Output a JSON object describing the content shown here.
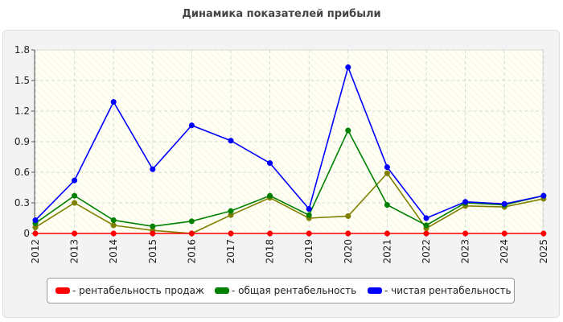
{
  "chart_data": {
    "type": "line",
    "title": "Динамика показателей прибыли",
    "categories": [
      "2012",
      "2013",
      "2014",
      "2015",
      "2016",
      "2017",
      "2018",
      "2019",
      "2020",
      "2021",
      "2022",
      "2023",
      "2024",
      "2025"
    ],
    "ylim": [
      0,
      1.8
    ],
    "yticks": [
      "0",
      "0.3",
      "0.6",
      "0.9",
      "1.2",
      "1.5",
      "1.8"
    ],
    "grid": true,
    "legend_position": "bottom",
    "series": [
      {
        "name": "- рентабельность продаж",
        "color": "#ff0000",
        "values": [
          0,
          0,
          0,
          0,
          0,
          0,
          0,
          0,
          0,
          0,
          0,
          0,
          0,
          0
        ]
      },
      {
        "name": "",
        "color": "#808000",
        "values": [
          0.06,
          0.3,
          0.08,
          0.03,
          0.0,
          0.18,
          0.35,
          0.15,
          0.17,
          0.59,
          0.05,
          0.27,
          0.26,
          0.34
        ]
      },
      {
        "name": "- общая рентабельность",
        "color": "#008000",
        "values": [
          0.1,
          0.37,
          0.13,
          0.07,
          0.12,
          0.22,
          0.37,
          0.18,
          1.01,
          0.28,
          0.08,
          0.3,
          0.28,
          0.37
        ]
      },
      {
        "name": "- чистая рентабельность",
        "color": "#0000ff",
        "values": [
          0.13,
          0.52,
          1.29,
          0.63,
          1.06,
          0.91,
          0.69,
          0.24,
          1.63,
          0.65,
          0.15,
          0.31,
          0.29,
          0.37
        ]
      }
    ]
  }
}
